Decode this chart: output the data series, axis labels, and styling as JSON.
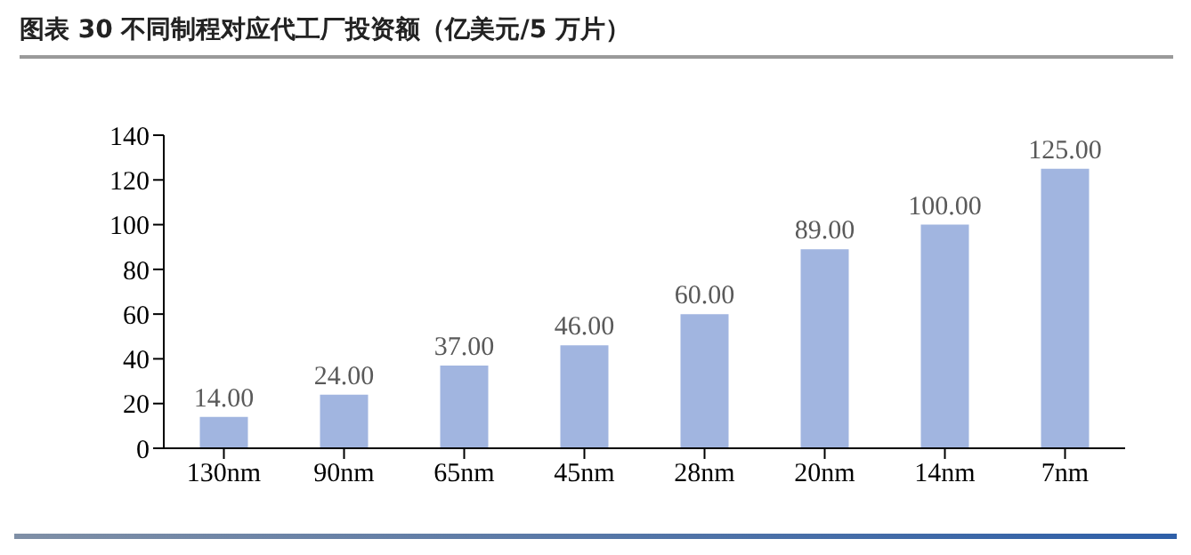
{
  "chart_data": {
    "type": "bar",
    "title": "图表 30 不同制程对应代工厂投资额（亿美元/5 万片）",
    "categories": [
      "130nm",
      "90nm",
      "65nm",
      "45nm",
      "28nm",
      "20nm",
      "14nm",
      "7nm"
    ],
    "values": [
      14,
      24,
      37,
      46,
      60,
      89,
      100,
      125
    ],
    "value_labels": [
      "14.00",
      "24.00",
      "37.00",
      "46.00",
      "60.00",
      "89.00",
      "100.00",
      "125.00"
    ],
    "color": "#a1b5e0",
    "ylim": [
      0,
      140
    ],
    "yticks": [
      0,
      20,
      40,
      60,
      80,
      100,
      120,
      140
    ],
    "grid": false,
    "legend": false
  }
}
